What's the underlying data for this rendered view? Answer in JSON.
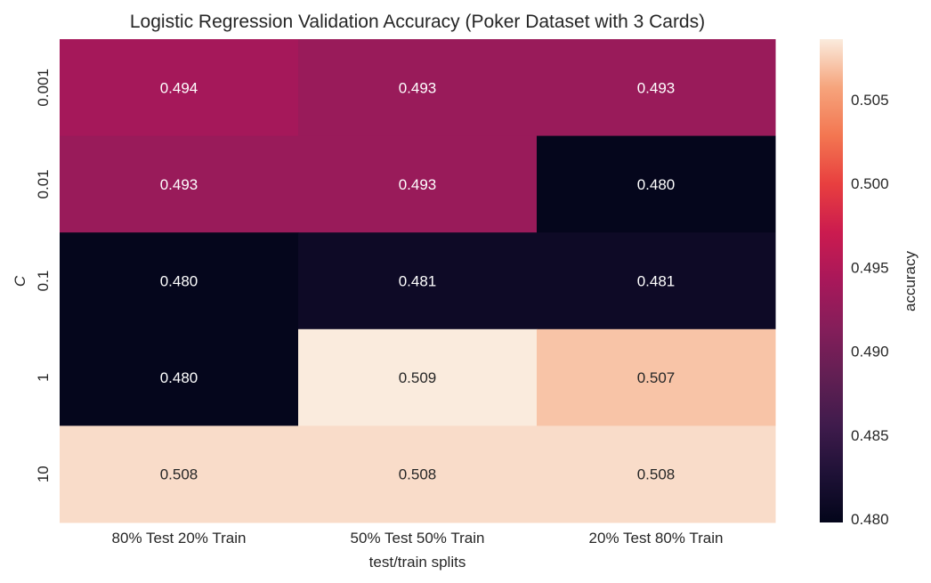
{
  "chart_data": {
    "type": "heatmap",
    "title": "Logistic Regression Validation Accuracy (Poker Dataset with 3 Cards)",
    "xlabel": "test/train splits",
    "ylabel": "C",
    "x_categories": [
      "80% Test 20% Train",
      "50% Test 50% Train",
      "20% Test 80% Train"
    ],
    "y_categories": [
      "0.001",
      "0.01",
      "0.1",
      "1",
      "10"
    ],
    "values": [
      [
        0.494,
        0.493,
        0.493
      ],
      [
        0.493,
        0.493,
        0.48
      ],
      [
        0.48,
        0.481,
        0.481
      ],
      [
        0.48,
        0.509,
        0.507
      ],
      [
        0.508,
        0.508,
        0.508
      ]
    ],
    "value_labels": [
      [
        "0.494",
        "0.493",
        "0.493"
      ],
      [
        "0.493",
        "0.493",
        "0.480"
      ],
      [
        "0.480",
        "0.481",
        "0.481"
      ],
      [
        "0.480",
        "0.509",
        "0.507"
      ],
      [
        "0.508",
        "0.508",
        "0.508"
      ]
    ],
    "colorbar": {
      "label": "accuracy",
      "vmin": 0.4798,
      "vmax": 0.5086,
      "ticks": [
        0.48,
        0.485,
        0.49,
        0.495,
        0.5,
        0.505
      ],
      "tick_labels": [
        "0.480",
        "0.485",
        "0.490",
        "0.495",
        "0.500",
        "0.505"
      ],
      "colormap": "rocket"
    },
    "annotation_colors": {
      "on_dark": "#ffffff",
      "on_light": "#262626"
    },
    "text_color": "#262626"
  }
}
